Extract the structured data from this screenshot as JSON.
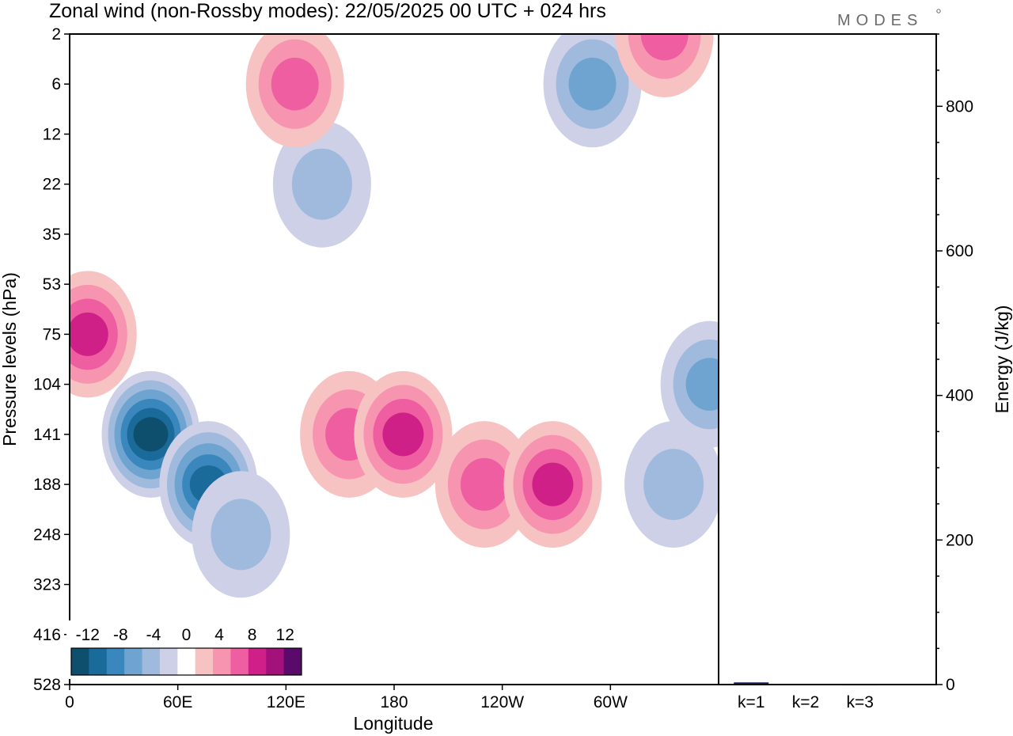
{
  "title": "Zonal wind (non-Rossby modes):  22/05/2025  00 UTC  + 024 hrs",
  "brand": "MODES",
  "colors": {
    "neg": [
      "#0d4f6d",
      "#1a6a9a",
      "#3a87bd",
      "#6ea4cf",
      "#9fbadc",
      "#cdd0e6"
    ],
    "zero": "#ffffff",
    "pos": [
      "#f7c2c2",
      "#f794b0",
      "#ee5ea0",
      "#cf2088",
      "#a3127a",
      "#5a0a6a"
    ],
    "bar": "#1a1f6a"
  },
  "chart_data": [
    {
      "type": "heatmap",
      "title": "Zonal wind (non-Rossby modes):  22/05/2025  00 UTC  + 024 hrs",
      "xlabel": "Longitude",
      "ylabel": "Pressure levels (hPa)",
      "x_ticks": [
        "0",
        "60E",
        "120E",
        "180",
        "120W",
        "60W"
      ],
      "x_tick_values": [
        0,
        60,
        120,
        180,
        240,
        300
      ],
      "xlim": [
        0,
        360
      ],
      "y_ticks": [
        "2",
        "6",
        "12",
        "22",
        "35",
        "53",
        "75",
        "104",
        "141",
        "188",
        "248",
        "323",
        "416",
        "528"
      ],
      "colorbar": {
        "labels": [
          "-12",
          "-8",
          "-4",
          "0",
          "4",
          "8",
          "12"
        ],
        "bins": [
          -14,
          -12,
          -10,
          -8,
          -6,
          -4,
          -2,
          2,
          4,
          6,
          8,
          10,
          12,
          14
        ]
      },
      "features": [
        {
          "lon": 45,
          "level": 141,
          "value": -13
        },
        {
          "lon": 77,
          "level": 188,
          "value": -11
        },
        {
          "lon": 95,
          "level": 248,
          "value": -5
        },
        {
          "lon": 10,
          "level": 75,
          "value": 9
        },
        {
          "lon": 155,
          "level": 141,
          "value": 6
        },
        {
          "lon": 185,
          "level": 141,
          "value": 8
        },
        {
          "lon": 230,
          "level": 188,
          "value": 7
        },
        {
          "lon": 268,
          "level": 188,
          "value": 8
        },
        {
          "lon": 355,
          "level": 104,
          "value": -7
        },
        {
          "lon": 335,
          "level": 188,
          "value": -5
        },
        {
          "lon": 140,
          "level": 22,
          "value": -5
        },
        {
          "lon": 290,
          "level": 6,
          "value": -6
        },
        {
          "lon": 330,
          "level": 2,
          "value": 7
        },
        {
          "lon": 125,
          "level": 6,
          "value": 6
        }
      ]
    },
    {
      "type": "bar",
      "categories": [
        "k=1",
        "k=2",
        "k=3"
      ],
      "values": [
        3,
        1,
        0.5
      ],
      "ylabel": "Energy (J/kg)",
      "ylim": [
        0,
        900
      ],
      "y_ticks": [
        "0",
        "200",
        "400",
        "600",
        "800"
      ]
    }
  ]
}
